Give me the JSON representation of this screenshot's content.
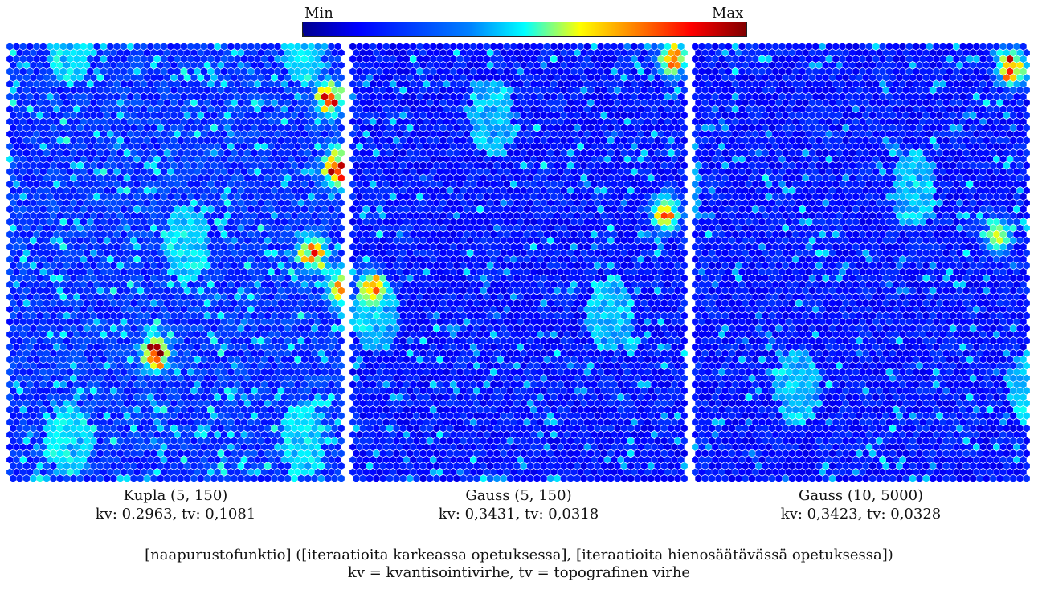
{
  "colorbar": {
    "min_label": "Min",
    "max_label": "Max",
    "colormap": "jet",
    "colors": [
      "#00008f",
      "#0000ff",
      "#0080ff",
      "#00ffff",
      "#80ff80",
      "#ffff00",
      "#ff8000",
      "#ff0000",
      "#800000"
    ]
  },
  "panels": [
    {
      "title": "Kupla (5, 150)",
      "errors": "kv: 0.2963, tv: 0,1081",
      "neighborhood": "Kupla",
      "coarse_iterations": 5,
      "fine_iterations": 150,
      "quantization_error": 0.2963,
      "topographic_error": 0.1081,
      "hotspots": [
        {
          "u": 0.43,
          "v": 0.7,
          "level": 0.95
        },
        {
          "u": 0.97,
          "v": 0.28,
          "level": 0.9
        },
        {
          "u": 0.95,
          "v": 0.12,
          "level": 0.85
        },
        {
          "u": 0.9,
          "v": 0.47,
          "level": 0.75
        },
        {
          "u": 0.98,
          "v": 0.55,
          "level": 0.7
        }
      ]
    },
    {
      "title": "Gauss (5, 150)",
      "errors": "kv: 0,3431, tv: 0,0318",
      "neighborhood": "Gauss",
      "coarse_iterations": 5,
      "fine_iterations": 150,
      "quantization_error": 0.3431,
      "topographic_error": 0.0318,
      "hotspots": [
        {
          "u": 0.95,
          "v": 0.03,
          "level": 0.85
        },
        {
          "u": 0.93,
          "v": 0.38,
          "level": 0.8
        },
        {
          "u": 0.05,
          "v": 0.55,
          "level": 0.6
        }
      ]
    },
    {
      "title": "Gauss (10, 5000)",
      "errors": "kv: 0,3423, tv: 0,0328",
      "neighborhood": "Gauss",
      "coarse_iterations": 10,
      "fine_iterations": 5000,
      "quantization_error": 0.3423,
      "topographic_error": 0.0328,
      "hotspots": [
        {
          "u": 0.94,
          "v": 0.05,
          "level": 0.9
        },
        {
          "u": 0.9,
          "v": 0.43,
          "level": 0.55
        }
      ]
    }
  ],
  "legend": {
    "line1": "[naapurustofunktio] ([iteraatioita karkeassa opetuksessa], [iteraatioita hienosäätävässä opetuksessa])",
    "line2": "kv = kvantisointivirhe, tv = topografinen virhe"
  }
}
